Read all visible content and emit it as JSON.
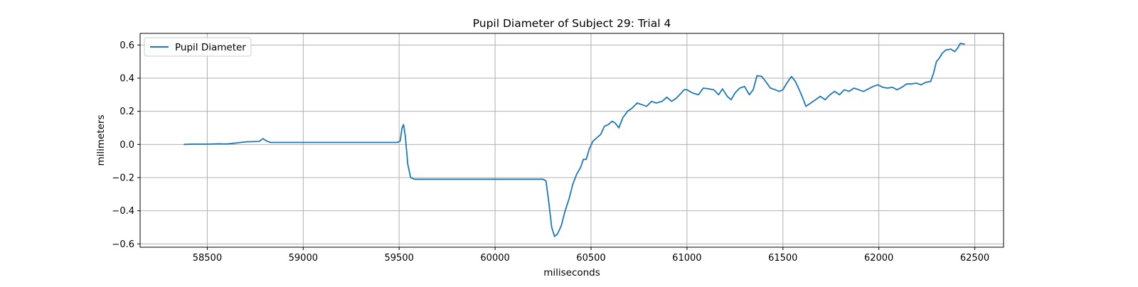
{
  "chart_data": {
    "type": "line",
    "title": "Pupil Diameter of Subject 29: Trial 4",
    "xlabel": "miliseconds",
    "ylabel": "milimeters",
    "xlim": [
      58150,
      62650
    ],
    "ylim": [
      -0.62,
      0.67
    ],
    "xticks": [
      58500,
      59000,
      59500,
      60000,
      60500,
      61000,
      61500,
      62000,
      62500
    ],
    "xtick_labels": [
      "58500",
      "59000",
      "59500",
      "60000",
      "60500",
      "61000",
      "61500",
      "62000",
      "62500"
    ],
    "yticks": [
      -0.6,
      -0.4,
      -0.2,
      0.0,
      0.2,
      0.4,
      0.6
    ],
    "ytick_labels": [
      "−0.6",
      "−0.4",
      "−0.2",
      "0.0",
      "0.2",
      "0.4",
      "0.6"
    ],
    "grid": true,
    "legend_position": "top-left",
    "series": [
      {
        "name": "Pupil Diameter",
        "color": "#1f77b4",
        "points": [
          [
            58380,
            0.0
          ],
          [
            58420,
            0.002
          ],
          [
            58500,
            0.002
          ],
          [
            58560,
            0.004
          ],
          [
            58600,
            0.003
          ],
          [
            58630,
            0.006
          ],
          [
            58660,
            0.01
          ],
          [
            58700,
            0.016
          ],
          [
            58770,
            0.018
          ],
          [
            58790,
            0.035
          ],
          [
            58810,
            0.02
          ],
          [
            58830,
            0.012
          ],
          [
            58900,
            0.012
          ],
          [
            59000,
            0.012
          ],
          [
            59200,
            0.012
          ],
          [
            59400,
            0.012
          ],
          [
            59490,
            0.012
          ],
          [
            59505,
            0.02
          ],
          [
            59515,
            0.1
          ],
          [
            59523,
            0.12
          ],
          [
            59532,
            0.05
          ],
          [
            59545,
            -0.12
          ],
          [
            59560,
            -0.2
          ],
          [
            59580,
            -0.21
          ],
          [
            59700,
            -0.21
          ],
          [
            59900,
            -0.21
          ],
          [
            60100,
            -0.21
          ],
          [
            60250,
            -0.21
          ],
          [
            60265,
            -0.22
          ],
          [
            60280,
            -0.35
          ],
          [
            60295,
            -0.5
          ],
          [
            60310,
            -0.555
          ],
          [
            60325,
            -0.54
          ],
          [
            60345,
            -0.49
          ],
          [
            60365,
            -0.4
          ],
          [
            60385,
            -0.33
          ],
          [
            60405,
            -0.24
          ],
          [
            60425,
            -0.18
          ],
          [
            60445,
            -0.14
          ],
          [
            60460,
            -0.09
          ],
          [
            60475,
            -0.09
          ],
          [
            60490,
            -0.03
          ],
          [
            60510,
            0.02
          ],
          [
            60530,
            0.04
          ],
          [
            60550,
            0.06
          ],
          [
            60570,
            0.11
          ],
          [
            60590,
            0.12
          ],
          [
            60610,
            0.14
          ],
          [
            60625,
            0.13
          ],
          [
            60645,
            0.1
          ],
          [
            60665,
            0.16
          ],
          [
            60690,
            0.2
          ],
          [
            60715,
            0.22
          ],
          [
            60740,
            0.25
          ],
          [
            60765,
            0.24
          ],
          [
            60790,
            0.23
          ],
          [
            60815,
            0.26
          ],
          [
            60840,
            0.25
          ],
          [
            60870,
            0.26
          ],
          [
            60895,
            0.285
          ],
          [
            60920,
            0.26
          ],
          [
            60945,
            0.28
          ],
          [
            60970,
            0.31
          ],
          [
            60985,
            0.33
          ],
          [
            61000,
            0.33
          ],
          [
            61030,
            0.31
          ],
          [
            61060,
            0.3
          ],
          [
            61085,
            0.34
          ],
          [
            61115,
            0.335
          ],
          [
            61140,
            0.33
          ],
          [
            61165,
            0.3
          ],
          [
            61185,
            0.335
          ],
          [
            61210,
            0.29
          ],
          [
            61230,
            0.27
          ],
          [
            61250,
            0.31
          ],
          [
            61275,
            0.34
          ],
          [
            61300,
            0.35
          ],
          [
            61325,
            0.3
          ],
          [
            61345,
            0.33
          ],
          [
            61365,
            0.415
          ],
          [
            61390,
            0.41
          ],
          [
            61410,
            0.38
          ],
          [
            61435,
            0.34
          ],
          [
            61460,
            0.33
          ],
          [
            61480,
            0.32
          ],
          [
            61500,
            0.33
          ],
          [
            61520,
            0.37
          ],
          [
            61545,
            0.41
          ],
          [
            61565,
            0.38
          ],
          [
            61585,
            0.33
          ],
          [
            61600,
            0.29
          ],
          [
            61620,
            0.23
          ],
          [
            61645,
            0.25
          ],
          [
            61670,
            0.27
          ],
          [
            61695,
            0.29
          ],
          [
            61720,
            0.27
          ],
          [
            61745,
            0.3
          ],
          [
            61770,
            0.32
          ],
          [
            61795,
            0.3
          ],
          [
            61820,
            0.33
          ],
          [
            61845,
            0.32
          ],
          [
            61870,
            0.34
          ],
          [
            61895,
            0.33
          ],
          [
            61920,
            0.32
          ],
          [
            61945,
            0.335
          ],
          [
            61970,
            0.35
          ],
          [
            61995,
            0.36
          ],
          [
            62020,
            0.345
          ],
          [
            62045,
            0.34
          ],
          [
            62070,
            0.345
          ],
          [
            62095,
            0.33
          ],
          [
            62120,
            0.345
          ],
          [
            62145,
            0.365
          ],
          [
            62170,
            0.365
          ],
          [
            62195,
            0.37
          ],
          [
            62220,
            0.36
          ],
          [
            62245,
            0.375
          ],
          [
            62270,
            0.38
          ],
          [
            62285,
            0.43
          ],
          [
            62300,
            0.5
          ],
          [
            62315,
            0.52
          ],
          [
            62330,
            0.55
          ],
          [
            62350,
            0.57
          ],
          [
            62375,
            0.575
          ],
          [
            62395,
            0.56
          ],
          [
            62410,
            0.58
          ],
          [
            62425,
            0.61
          ],
          [
            62445,
            0.605
          ]
        ]
      }
    ]
  }
}
